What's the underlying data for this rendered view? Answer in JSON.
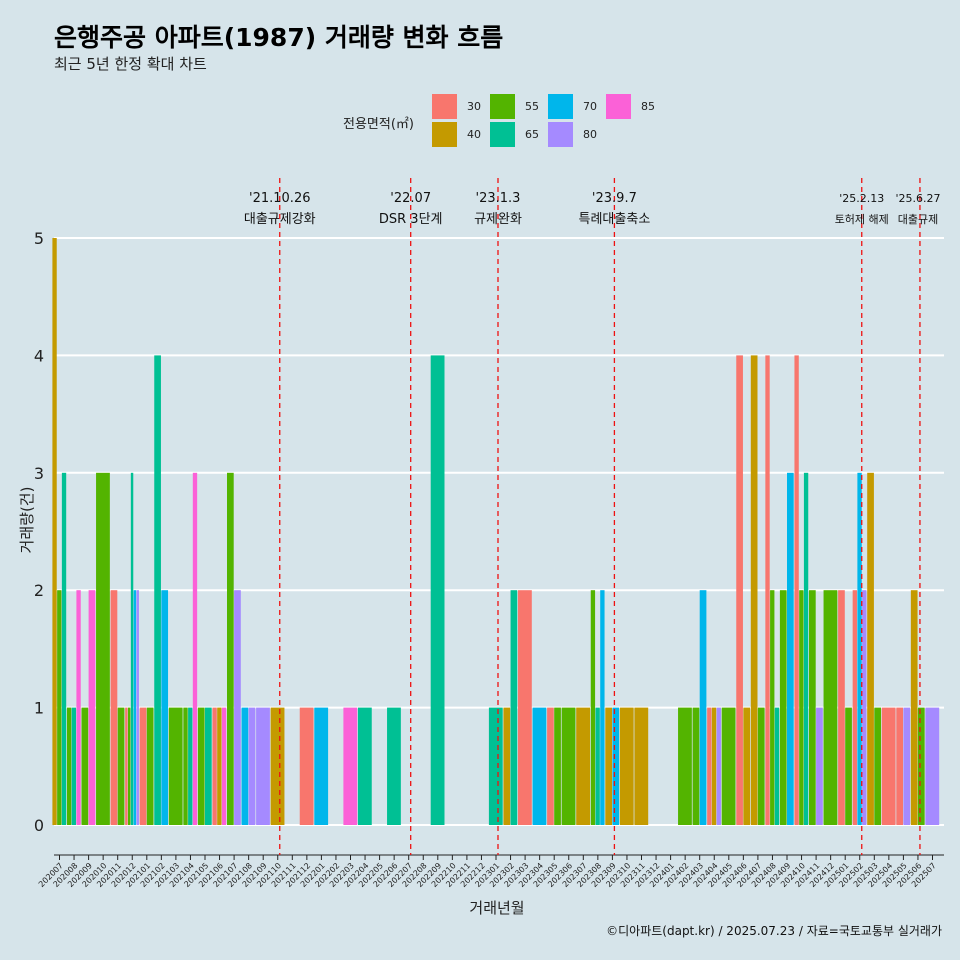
{
  "title": "은행주공 아파트(1987) 거래량 변화 흐름",
  "subtitle": "최근 5년 한정 확대 차트",
  "caption": "©디아파트(dapt.kr) / 2025.07.23 / 자료=국토교통부 실거래가",
  "legend": {
    "title": "전용면적(㎡)",
    "items": [
      {
        "label": "30",
        "color": "#F8766D"
      },
      {
        "label": "40",
        "color": "#C49A00"
      },
      {
        "label": "55",
        "color": "#53B400"
      },
      {
        "label": "65",
        "color": "#00C094"
      },
      {
        "label": "70",
        "color": "#00B6EB"
      },
      {
        "label": "80",
        "color": "#A58AFF"
      },
      {
        "label": "85",
        "color": "#FB61D7"
      }
    ]
  },
  "chart_data": {
    "type": "bar",
    "title": "은행주공 아파트(1987) 거래량 변화 흐름",
    "xlabel": "거래년월",
    "ylabel": "거래량(건)",
    "ylim": [
      0,
      5
    ],
    "yticks": [
      0,
      1,
      2,
      3,
      4,
      5
    ],
    "categories": [
      "202007",
      "202008",
      "202009",
      "202010",
      "202011",
      "202012",
      "202101",
      "202102",
      "202103",
      "202104",
      "202105",
      "202106",
      "202107",
      "202108",
      "202109",
      "202110",
      "202111",
      "202112",
      "202201",
      "202202",
      "202203",
      "202204",
      "202205",
      "202206",
      "202207",
      "202208",
      "202209",
      "202210",
      "202211",
      "202212",
      "202301",
      "202302",
      "202303",
      "202304",
      "202305",
      "202306",
      "202307",
      "202308",
      "202309",
      "202310",
      "202311",
      "202312",
      "202401",
      "202402",
      "202403",
      "202404",
      "202405",
      "202406",
      "202407",
      "202408",
      "202409",
      "202410",
      "202411",
      "202412",
      "202501",
      "202502",
      "202503",
      "202504",
      "202505",
      "202506",
      "202507"
    ],
    "series": [
      {
        "name": "30",
        "values": [
          0,
          0,
          0,
          0,
          2,
          1,
          1,
          0,
          0,
          0,
          0,
          1,
          0,
          0,
          0,
          0,
          0,
          1,
          0,
          0,
          0,
          0,
          0,
          0,
          0,
          0,
          0,
          0,
          0,
          0,
          0,
          0,
          2,
          0,
          1,
          0,
          0,
          0,
          0,
          0,
          0,
          0,
          0,
          0,
          0,
          1,
          0,
          4,
          0,
          4,
          0,
          4,
          0,
          0,
          2,
          2,
          0,
          1,
          1,
          0,
          0
        ]
      },
      {
        "name": "40",
        "values": [
          5,
          0,
          0,
          0,
          0,
          0,
          0,
          0,
          0,
          0,
          0,
          1,
          0,
          0,
          0,
          1,
          0,
          0,
          0,
          0,
          0,
          0,
          0,
          0,
          0,
          0,
          0,
          0,
          0,
          0,
          0,
          1,
          0,
          0,
          0,
          0,
          1,
          0,
          1,
          1,
          1,
          0,
          0,
          0,
          0,
          1,
          0,
          1,
          4,
          0,
          0,
          0,
          0,
          0,
          0,
          0,
          3,
          0,
          0,
          2,
          0
        ]
      },
      {
        "name": "55",
        "values": [
          2,
          1,
          1,
          3,
          1,
          1,
          1,
          0,
          1,
          1,
          1,
          0,
          3,
          0,
          0,
          0,
          0,
          0,
          0,
          0,
          0,
          0,
          0,
          0,
          0,
          0,
          0,
          0,
          0,
          0,
          0,
          0,
          0,
          0,
          1,
          1,
          0,
          2,
          0,
          0,
          0,
          0,
          0,
          1,
          1,
          0,
          1,
          0,
          1,
          2,
          2,
          2,
          2,
          2,
          1,
          0,
          1,
          0,
          0,
          1,
          0
        ]
      },
      {
        "name": "65",
        "values": [
          3,
          1,
          0,
          0,
          0,
          3,
          0,
          4,
          0,
          1,
          1,
          0,
          0,
          0,
          0,
          0,
          0,
          0,
          0,
          0,
          0,
          1,
          0,
          1,
          0,
          0,
          4,
          0,
          0,
          0,
          1,
          2,
          0,
          0,
          0,
          0,
          0,
          1,
          0,
          0,
          0,
          0,
          0,
          0,
          0,
          0,
          0,
          0,
          0,
          1,
          0,
          3,
          0,
          0,
          0,
          0,
          0,
          0,
          0,
          0,
          0
        ]
      },
      {
        "name": "70",
        "values": [
          0,
          0,
          0,
          0,
          0,
          2,
          0,
          2,
          0,
          0,
          0,
          0,
          0,
          1,
          0,
          0,
          0,
          0,
          1,
          0,
          0,
          0,
          0,
          0,
          0,
          0,
          0,
          0,
          0,
          0,
          0,
          0,
          0,
          1,
          0,
          0,
          0,
          2,
          1,
          0,
          0,
          0,
          0,
          0,
          2,
          0,
          0,
          0,
          0,
          0,
          3,
          0,
          0,
          0,
          0,
          3,
          0,
          0,
          0,
          0,
          0
        ]
      },
      {
        "name": "80",
        "values": [
          0,
          0,
          0,
          0,
          0,
          2,
          0,
          0,
          0,
          0,
          0,
          0,
          2,
          1,
          1,
          0,
          0,
          0,
          0,
          0,
          0,
          0,
          0,
          0,
          0,
          0,
          0,
          0,
          0,
          0,
          0,
          0,
          0,
          0,
          0,
          0,
          0,
          0,
          0,
          0,
          0,
          0,
          0,
          0,
          0,
          1,
          0,
          0,
          0,
          0,
          0,
          0,
          1,
          0,
          0,
          2,
          0,
          0,
          1,
          0,
          1
        ]
      },
      {
        "name": "85",
        "values": [
          0,
          2,
          2,
          0,
          0,
          0,
          0,
          0,
          0,
          3,
          0,
          1,
          0,
          0,
          0,
          0,
          0,
          0,
          0,
          0,
          1,
          0,
          0,
          0,
          0,
          0,
          0,
          0,
          0,
          0,
          0,
          0,
          0,
          0,
          0,
          0,
          0,
          0,
          0,
          0,
          0,
          0,
          0,
          0,
          0,
          0,
          0,
          0,
          0,
          0,
          0,
          0,
          0,
          0,
          0,
          0,
          0,
          0,
          0,
          0,
          0
        ]
      }
    ],
    "events": [
      {
        "date": "'21.10.26",
        "label": "대출규제강화",
        "at": "202110"
      },
      {
        "date": "'22.07",
        "label": "DSR 3단계",
        "at": "202207"
      },
      {
        "date": "'23.1.3",
        "label": "규제완화",
        "at": "202301"
      },
      {
        "date": "'23.9.7",
        "label": "특례대출축소",
        "at": "202309"
      },
      {
        "date": "'25.2.13",
        "label": "토허제 해제",
        "at": "202502"
      },
      {
        "date": "'25.6.27",
        "label": "대출규제",
        "at": "202506"
      }
    ]
  }
}
